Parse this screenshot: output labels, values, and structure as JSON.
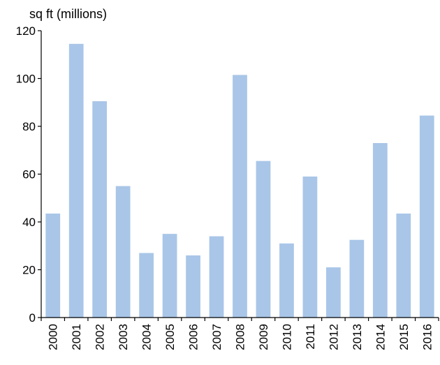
{
  "chart_data": {
    "type": "bar",
    "title": "",
    "ylabel": "sq ft (millions)",
    "xlabel": "",
    "categories": [
      "2000",
      "2001",
      "2002",
      "2003",
      "2004",
      "2005",
      "2006",
      "2007",
      "2008",
      "2009",
      "2010",
      "2011",
      "2012",
      "2013",
      "2014",
      "2015",
      "2016"
    ],
    "series": [
      {
        "name": "sq ft (millions)",
        "values": [
          43.5,
          114.5,
          90.5,
          55,
          27,
          35,
          26,
          34,
          101.5,
          65.5,
          31,
          59,
          21,
          32.5,
          73,
          43.5,
          84.5
        ]
      }
    ],
    "ylim": [
      0,
      120
    ],
    "yticks": [
      0,
      20,
      40,
      60,
      80,
      100,
      120
    ],
    "ytick_labels": [
      "0",
      "20",
      "40",
      "60",
      "80",
      "100",
      "120"
    ],
    "grid": false,
    "legend": "none",
    "colors": {
      "bar": "#a9c6e8",
      "axis": "#000000"
    }
  }
}
